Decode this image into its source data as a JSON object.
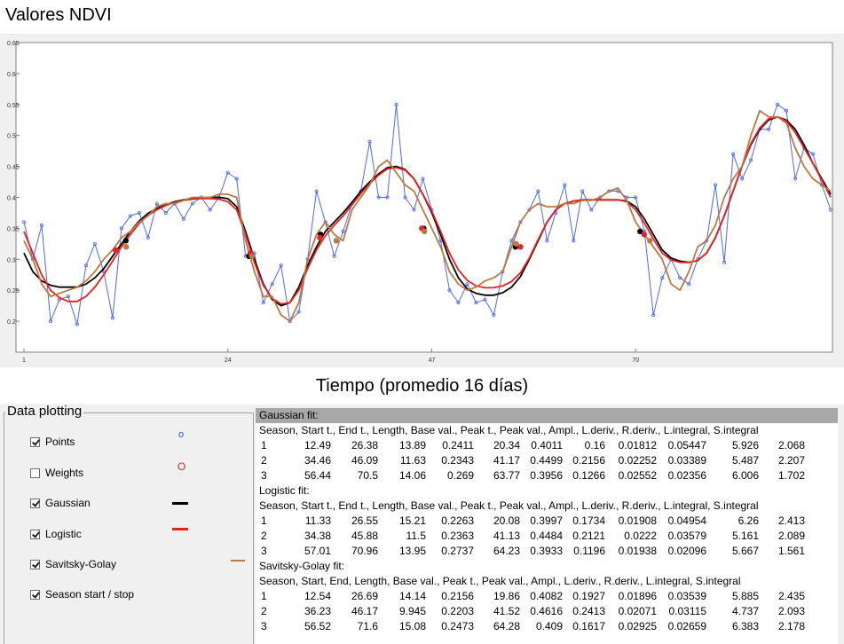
{
  "chart_data": {
    "type": "line",
    "title": "Valores NDVI",
    "xlabel": "Tiempo (promedio 16 días)",
    "ylabel": "",
    "xlim": [
      1,
      92
    ],
    "ylim": [
      0.15,
      0.65
    ],
    "xticks": [
      "1",
      "24",
      "47",
      "70"
    ],
    "xtick_values": [
      1,
      24,
      47,
      70
    ],
    "yticks": [
      "0.2",
      "0.25",
      "0.3",
      "0.35",
      "0.4",
      "0.45",
      "0.5",
      "0.55",
      "0.6",
      "0.65"
    ],
    "ytick_values": [
      0.2,
      0.25,
      0.3,
      0.35,
      0.4,
      0.45,
      0.5,
      0.55,
      0.6,
      0.65
    ],
    "series": [
      {
        "name": "Points",
        "color": "#4f68e8",
        "x": [
          1,
          2,
          3,
          4,
          5,
          6,
          7,
          8,
          9,
          10,
          11,
          12,
          13,
          14,
          15,
          16,
          17,
          18,
          19,
          20,
          21,
          22,
          23,
          24,
          25,
          26,
          27,
          28,
          29,
          30,
          31,
          32,
          33,
          34,
          35,
          36,
          37,
          38,
          39,
          40,
          41,
          42,
          43,
          44,
          45,
          46,
          47,
          48,
          49,
          50,
          51,
          52,
          53,
          54,
          55,
          56,
          57,
          58,
          59,
          60,
          61,
          62,
          63,
          64,
          65,
          66,
          67,
          68,
          69,
          70,
          71,
          72,
          73,
          74,
          75,
          76,
          77,
          78,
          79,
          80,
          81,
          82,
          83,
          84,
          85,
          86,
          87,
          88,
          89,
          90,
          91,
          92
        ],
        "values": [
          0.36,
          0.3,
          0.355,
          0.2,
          0.235,
          0.24,
          0.195,
          0.29,
          0.325,
          0.28,
          0.205,
          0.35,
          0.37,
          0.375,
          0.335,
          0.39,
          0.375,
          0.39,
          0.365,
          0.39,
          0.4,
          0.38,
          0.4,
          0.44,
          0.43,
          0.305,
          0.31,
          0.23,
          0.26,
          0.29,
          0.2,
          0.215,
          0.3,
          0.41,
          0.36,
          0.305,
          0.345,
          0.39,
          0.41,
          0.49,
          0.4,
          0.4,
          0.55,
          0.4,
          0.38,
          0.43,
          0.38,
          0.33,
          0.25,
          0.23,
          0.26,
          0.23,
          0.235,
          0.21,
          0.28,
          0.33,
          0.36,
          0.38,
          0.41,
          0.33,
          0.375,
          0.42,
          0.33,
          0.41,
          0.38,
          0.4,
          0.41,
          0.41,
          0.4,
          0.4,
          0.345,
          0.21,
          0.27,
          0.3,
          0.27,
          0.26,
          0.3,
          0.33,
          0.42,
          0.295,
          0.47,
          0.43,
          0.46,
          0.51,
          0.51,
          0.55,
          0.54,
          0.43,
          0.48,
          0.47,
          0.42,
          0.38
        ]
      },
      {
        "name": "Gaussian",
        "color": "#000000",
        "x": [
          1,
          2,
          3,
          4,
          5,
          6,
          7,
          8,
          9,
          10,
          11,
          12,
          13,
          14,
          15,
          16,
          17,
          18,
          19,
          20,
          21,
          22,
          23,
          24,
          25,
          26,
          27,
          28,
          29,
          30,
          31,
          32,
          33,
          34,
          35,
          36,
          37,
          38,
          39,
          40,
          41,
          42,
          43,
          44,
          45,
          46,
          47,
          48,
          49,
          50,
          51,
          52,
          53,
          54,
          55,
          56,
          57,
          58,
          59,
          60,
          61,
          62,
          63,
          64,
          65,
          66,
          67,
          68,
          69,
          70,
          71,
          72,
          73,
          74,
          75,
          76,
          77,
          78,
          79,
          80,
          81,
          82,
          83,
          84,
          85,
          86,
          87,
          88,
          89,
          90,
          91,
          92
        ],
        "values": [
          0.31,
          0.28,
          0.265,
          0.258,
          0.255,
          0.255,
          0.255,
          0.26,
          0.27,
          0.285,
          0.305,
          0.325,
          0.345,
          0.362,
          0.374,
          0.382,
          0.388,
          0.393,
          0.396,
          0.398,
          0.399,
          0.4,
          0.4,
          0.398,
          0.385,
          0.345,
          0.3,
          0.26,
          0.235,
          0.225,
          0.23,
          0.255,
          0.29,
          0.32,
          0.345,
          0.36,
          0.375,
          0.392,
          0.41,
          0.425,
          0.438,
          0.448,
          0.45,
          0.445,
          0.43,
          0.405,
          0.375,
          0.34,
          0.3,
          0.27,
          0.252,
          0.245,
          0.242,
          0.242,
          0.246,
          0.255,
          0.272,
          0.3,
          0.33,
          0.36,
          0.38,
          0.39,
          0.394,
          0.396,
          0.396,
          0.396,
          0.396,
          0.396,
          0.394,
          0.385,
          0.365,
          0.34,
          0.315,
          0.302,
          0.297,
          0.295,
          0.298,
          0.31,
          0.335,
          0.37,
          0.41,
          0.45,
          0.485,
          0.51,
          0.525,
          0.53,
          0.525,
          0.51,
          0.485,
          0.455,
          0.43,
          0.405
        ]
      },
      {
        "name": "Logistic",
        "color": "#e82020",
        "x": [
          1,
          2,
          3,
          4,
          5,
          6,
          7,
          8,
          9,
          10,
          11,
          12,
          13,
          14,
          15,
          16,
          17,
          18,
          19,
          20,
          21,
          22,
          23,
          24,
          25,
          26,
          27,
          28,
          29,
          30,
          31,
          32,
          33,
          34,
          35,
          36,
          37,
          38,
          39,
          40,
          41,
          42,
          43,
          44,
          45,
          46,
          47,
          48,
          49,
          50,
          51,
          52,
          53,
          54,
          55,
          56,
          57,
          58,
          59,
          60,
          61,
          62,
          63,
          64,
          65,
          66,
          67,
          68,
          69,
          70,
          71,
          72,
          73,
          74,
          75,
          76,
          77,
          78,
          79,
          80,
          81,
          82,
          83,
          84,
          85,
          86,
          87,
          88,
          89,
          90,
          91,
          92
        ],
        "values": [
          0.345,
          0.31,
          0.275,
          0.25,
          0.238,
          0.232,
          0.232,
          0.24,
          0.255,
          0.275,
          0.297,
          0.32,
          0.34,
          0.358,
          0.371,
          0.38,
          0.387,
          0.392,
          0.395,
          0.397,
          0.398,
          0.398,
          0.397,
          0.393,
          0.38,
          0.34,
          0.295,
          0.258,
          0.237,
          0.228,
          0.23,
          0.25,
          0.285,
          0.315,
          0.338,
          0.355,
          0.37,
          0.388,
          0.406,
          0.422,
          0.436,
          0.446,
          0.448,
          0.444,
          0.43,
          0.405,
          0.378,
          0.345,
          0.31,
          0.283,
          0.266,
          0.257,
          0.254,
          0.254,
          0.257,
          0.264,
          0.278,
          0.302,
          0.332,
          0.36,
          0.38,
          0.39,
          0.394,
          0.396,
          0.396,
          0.396,
          0.396,
          0.396,
          0.393,
          0.38,
          0.358,
          0.333,
          0.31,
          0.299,
          0.295,
          0.295,
          0.298,
          0.31,
          0.335,
          0.37,
          0.41,
          0.45,
          0.487,
          0.512,
          0.527,
          0.53,
          0.523,
          0.505,
          0.48,
          0.455,
          0.428,
          0.4
        ]
      },
      {
        "name": "Savitsky-Golay",
        "color": "#b87a40",
        "x": [
          1,
          2,
          3,
          4,
          5,
          6,
          7,
          8,
          9,
          10,
          11,
          12,
          13,
          14,
          15,
          16,
          17,
          18,
          19,
          20,
          21,
          22,
          23,
          24,
          25,
          26,
          27,
          28,
          29,
          30,
          31,
          32,
          33,
          34,
          35,
          36,
          37,
          38,
          39,
          40,
          41,
          42,
          43,
          44,
          45,
          46,
          47,
          48,
          49,
          50,
          51,
          52,
          53,
          54,
          55,
          56,
          57,
          58,
          59,
          60,
          61,
          62,
          63,
          64,
          65,
          66,
          67,
          68,
          69,
          70,
          71,
          72,
          73,
          74,
          75,
          76,
          77,
          78,
          79,
          80,
          81,
          82,
          83,
          84,
          85,
          86,
          87,
          88,
          89,
          90,
          91,
          92
        ],
        "values": [
          0.33,
          0.3,
          0.26,
          0.24,
          0.245,
          0.25,
          0.255,
          0.265,
          0.28,
          0.3,
          0.315,
          0.335,
          0.345,
          0.36,
          0.37,
          0.385,
          0.39,
          0.39,
          0.395,
          0.4,
          0.4,
          0.4,
          0.405,
          0.405,
          0.4,
          0.33,
          0.28,
          0.24,
          0.24,
          0.21,
          0.2,
          0.23,
          0.3,
          0.34,
          0.36,
          0.34,
          0.33,
          0.38,
          0.4,
          0.42,
          0.45,
          0.46,
          0.44,
          0.42,
          0.41,
          0.38,
          0.35,
          0.32,
          0.28,
          0.26,
          0.25,
          0.255,
          0.265,
          0.27,
          0.28,
          0.32,
          0.36,
          0.38,
          0.39,
          0.385,
          0.385,
          0.39,
          0.39,
          0.395,
          0.395,
          0.4,
          0.41,
          0.415,
          0.395,
          0.36,
          0.34,
          0.32,
          0.3,
          0.26,
          0.25,
          0.28,
          0.32,
          0.33,
          0.355,
          0.4,
          0.43,
          0.45,
          0.5,
          0.54,
          0.53,
          0.53,
          0.52,
          0.48,
          0.45,
          0.43,
          0.42,
          0.41
        ]
      }
    ],
    "markers": [
      {
        "name": "Season start / stop Gaussian",
        "color": "#000000",
        "x": [
          12.49,
          26.38,
          34.46,
          46.09,
          56.44,
          70.5
        ],
        "values": [
          0.33,
          0.305,
          0.34,
          0.35,
          0.32,
          0.345
        ]
      },
      {
        "name": "Season start / stop Logistic",
        "color": "#e82020",
        "x": [
          11.33,
          26.55,
          34.38,
          45.88,
          57.01,
          70.96
        ],
        "values": [
          0.315,
          0.31,
          0.335,
          0.35,
          0.32,
          0.34
        ]
      },
      {
        "name": "Season start / stop Savitsky-Golay",
        "color": "#b87a40",
        "x": [
          12.54,
          26.69,
          36.23,
          46.17,
          56.52,
          71.6
        ],
        "values": [
          0.32,
          0.305,
          0.33,
          0.345,
          0.325,
          0.33
        ]
      }
    ]
  },
  "data_plotting": {
    "title": "Data plotting",
    "items": [
      {
        "label": "Points",
        "checked": true,
        "symbol": "o",
        "color": "#3050e8"
      },
      {
        "label": "Weights",
        "checked": false,
        "symbol": "O",
        "color": "#e82020"
      },
      {
        "label": "Gaussian",
        "checked": true,
        "symbol": "line",
        "color": "#000000"
      },
      {
        "label": "Logistic",
        "checked": true,
        "symbol": "line",
        "color": "#e82020"
      },
      {
        "label": "Savitsky-Golay",
        "checked": true,
        "symbol": "line",
        "color": "#b87a40"
      },
      {
        "label": "Season start / stop",
        "checked": true,
        "symbol": "",
        "color": ""
      }
    ]
  },
  "results": {
    "sections": [
      {
        "title": "Gaussian fit:",
        "header": "Season, Start t., End t., Length, Base val., Peak t., Peak val., Ampl., L.deriv., R.deriv., L.integral, S.integral",
        "rows": [
          [
            "1",
            "12.49",
            "26.38",
            "13.89",
            "0.2411",
            "20.34",
            "0.4011",
            "0.16",
            "0.01812",
            "0.05447",
            "5.926",
            "2.068"
          ],
          [
            "2",
            "34.46",
            "46.09",
            "11.63",
            "0.2343",
            "41.17",
            "0.4499",
            "0.2156",
            "0.02252",
            "0.03389",
            "5.487",
            "2.207"
          ],
          [
            "3",
            "56.44",
            "70.5",
            "14.06",
            "0.269",
            "63.77",
            "0.3956",
            "0.1266",
            "0.02552",
            "0.02356",
            "6.006",
            "1.702"
          ]
        ]
      },
      {
        "title": "Logistic fit:",
        "header": "Season, Start t., End t., Length, Base val., Peak t., Peak val., Ampl., L.deriv., R.deriv., L.integral, S.integral",
        "rows": [
          [
            "1",
            "11.33",
            "26.55",
            "15.21",
            "0.2263",
            "20.08",
            "0.3997",
            "0.1734",
            "0.01908",
            "0.04954",
            "6.26",
            "2.413"
          ],
          [
            "2",
            "34.38",
            "45.88",
            "11.5",
            "0.2363",
            "41.13",
            "0.4484",
            "0.2121",
            "0.0222",
            "0.03579",
            "5.161",
            "2.089"
          ],
          [
            "3",
            "57.01",
            "70.96",
            "13.95",
            "0.2737",
            "64.23",
            "0.3933",
            "0.1196",
            "0.01938",
            "0.02096",
            "5.667",
            "1.561"
          ]
        ]
      },
      {
        "title": "Savitsky-Golay fit:",
        "header": "Season, Start, End, Length, Base val., Peak t., Peak val., Ampl., L.deriv., R.deriv., L.integral, S.integral",
        "rows": [
          [
            "1",
            "12.54",
            "26.69",
            "14.14",
            "0.2156",
            "19.86",
            "0.4082",
            "0.1927",
            "0.01896",
            "0.03539",
            "5.885",
            "2.435"
          ],
          [
            "2",
            "36.23",
            "46.17",
            "9.945",
            "0.2203",
            "41.52",
            "0.4616",
            "0.2413",
            "0.02071",
            "0.03115",
            "4.737",
            "2.093"
          ],
          [
            "3",
            "56.52",
            "71.6",
            "15.08",
            "0.2473",
            "64.28",
            "0.409",
            "0.1617",
            "0.02925",
            "0.02659",
            "6.383",
            "2.178"
          ]
        ]
      }
    ]
  }
}
